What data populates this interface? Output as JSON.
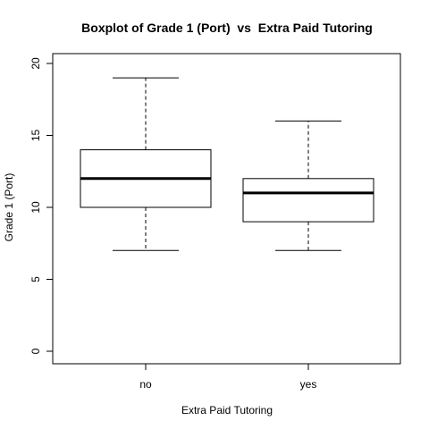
{
  "chart_data": {
    "type": "boxplot",
    "title": "Boxplot of Grade 1 (Port)  vs  Extra Paid Tutoring",
    "xlabel": "Extra Paid Tutoring",
    "ylabel": "Grade 1 (Port)",
    "ylim": [
      0,
      20
    ],
    "yticks": [
      0,
      5,
      10,
      15,
      20
    ],
    "categories": [
      "no",
      "yes"
    ],
    "boxes": [
      {
        "category": "no",
        "min": 7,
        "q1": 10,
        "median": 12,
        "q3": 14,
        "max": 19
      },
      {
        "category": "yes",
        "min": 7,
        "q1": 9,
        "median": 11,
        "q3": 12,
        "max": 16
      }
    ],
    "grid": false,
    "legend": "none"
  }
}
